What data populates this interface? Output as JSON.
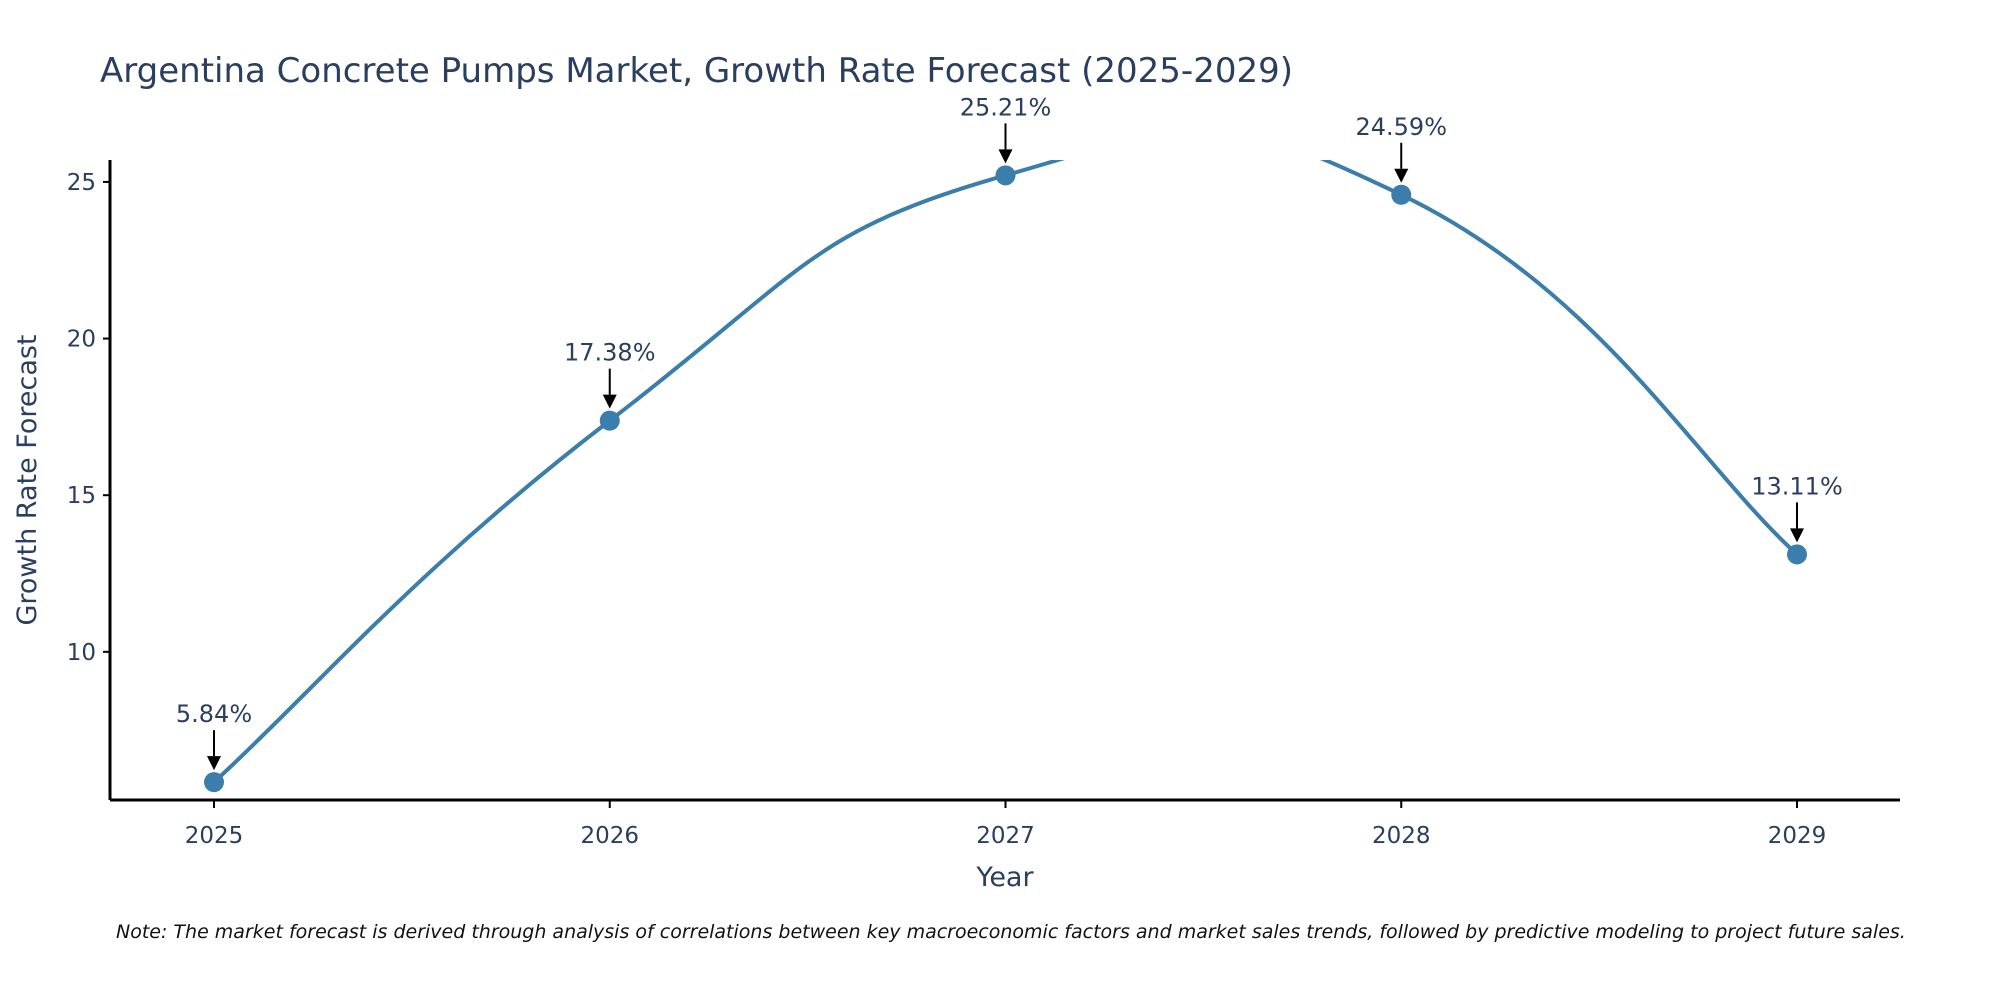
{
  "chart_data": {
    "type": "line",
    "title": "Argentina Concrete Pumps Market, Growth Rate Forecast (2025-2029)",
    "xlabel": "Year",
    "ylabel": "Growth Rate Forecast",
    "categories": [
      "2025",
      "2026",
      "2027",
      "2028",
      "2029"
    ],
    "series": [
      {
        "name": "Growth Rate Forecast",
        "values": [
          5.84,
          17.38,
          25.21,
          24.59,
          13.11
        ],
        "labels": [
          "5.84%",
          "17.38%",
          "25.21%",
          "24.59%",
          "13.11%"
        ]
      }
    ],
    "ylim": [
      5.27,
      25.7
    ],
    "y_ticks": [
      10,
      15,
      20,
      25
    ],
    "y_tick_labels": [
      "10",
      "15",
      "20",
      "25"
    ],
    "grid": false,
    "line_shape": "spline",
    "colors": {
      "line": "#3b7dab",
      "marker": "#3b7dab",
      "arrow": "#000000",
      "axis": "#000000"
    },
    "note": "Note: The market forecast is derived through analysis of correlations between key macroeconomic factors and market sales trends, followed by predictive modeling to project future sales."
  }
}
